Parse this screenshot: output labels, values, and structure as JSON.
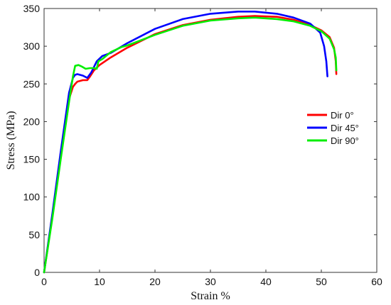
{
  "chart_data": {
    "type": "line",
    "title": "",
    "xlabel": "Strain %",
    "ylabel": "Stress (MPa)",
    "xlim": [
      0,
      60
    ],
    "ylim": [
      0,
      350
    ],
    "xticks": [
      0,
      10,
      20,
      30,
      40,
      50,
      60
    ],
    "yticks": [
      0,
      50,
      100,
      150,
      200,
      250,
      300,
      350
    ],
    "grid": false,
    "legend_position": "right",
    "series": [
      {
        "name": "Dir 0°",
        "color": "#ff0000",
        "x": [
          0,
          1.5,
          3,
          4.5,
          5.2,
          5.6,
          6,
          7,
          7.8,
          8.3,
          9,
          10,
          12,
          15,
          20,
          25,
          30,
          35,
          38,
          42,
          45,
          48,
          50,
          51.5,
          52.3,
          52.6,
          52.7
        ],
        "y": [
          0,
          75,
          155,
          230,
          246,
          250,
          253,
          255,
          255,
          260,
          268,
          275,
          285,
          298,
          316,
          328,
          335,
          339,
          340,
          339,
          335,
          328,
          321,
          312,
          298,
          280,
          263
        ]
      },
      {
        "name": "Dir 45°",
        "color": "#0000ff",
        "x": [
          0,
          1.5,
          3,
          4.5,
          5.2,
          5.6,
          6,
          7,
          7.8,
          8.5,
          9.5,
          10.5,
          12,
          15,
          20,
          25,
          30,
          35,
          38,
          42,
          45,
          48,
          49.8,
          50.5,
          50.9,
          51.1
        ],
        "y": [
          0,
          78,
          160,
          238,
          258,
          262,
          263,
          261,
          258,
          265,
          280,
          287,
          291,
          304,
          323,
          336,
          343,
          346,
          346,
          343,
          338,
          330,
          318,
          300,
          280,
          260
        ]
      },
      {
        "name": "Dir 90°",
        "color": "#00ee00",
        "x": [
          0,
          1.5,
          3,
          4.5,
          5.2,
          5.6,
          6.2,
          6.8,
          7.5,
          8.3,
          9,
          9.5,
          9.8,
          10.5,
          12,
          14,
          15,
          20,
          25,
          30,
          35,
          38,
          42,
          45,
          48,
          50,
          51.5,
          52.3,
          52.6,
          52.7
        ],
        "y": [
          0,
          72,
          150,
          226,
          260,
          274,
          275,
          273,
          270,
          271,
          271,
          270,
          280,
          283,
          292,
          299,
          301,
          315,
          327,
          334,
          337,
          338,
          336,
          333,
          327,
          320,
          310,
          296,
          285,
          268
        ]
      }
    ]
  }
}
